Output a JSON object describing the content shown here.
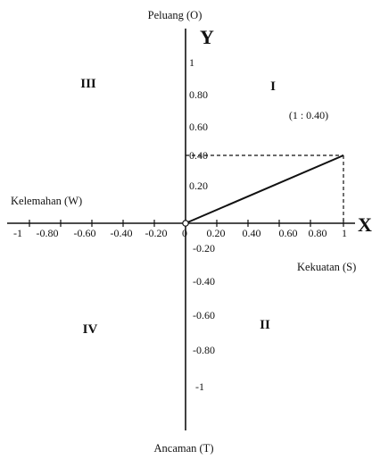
{
  "y_axis_top_label": "Peluang (O)",
  "y_axis_bottom_label": "Ancaman (T)",
  "x_axis_left_label": "Kelemahan (W)",
  "x_axis_right_label": "Kekuatan (S)",
  "y_letter": "Y",
  "x_letter": "X",
  "origin_label": "0",
  "quadrants": {
    "q1": "I",
    "q2": "II",
    "q3": "III",
    "q4": "IV"
  },
  "point_label": "(1 : 0.40)",
  "x_ticks_negative": [
    "-1",
    "-0.80",
    "-0.60",
    "-0.40",
    "-0.20"
  ],
  "x_ticks_positive": [
    "0.20",
    "0.40",
    "0.60",
    "0.80",
    "1"
  ],
  "y_ticks_positive": [
    "1",
    "0.80",
    "0.60",
    "0.40",
    "0.20"
  ],
  "y_ticks_negative": [
    "-0.20",
    "-0.40",
    "-0.60",
    "-0.80",
    "-1"
  ],
  "point": {
    "x": 1,
    "y": 0.4
  }
}
